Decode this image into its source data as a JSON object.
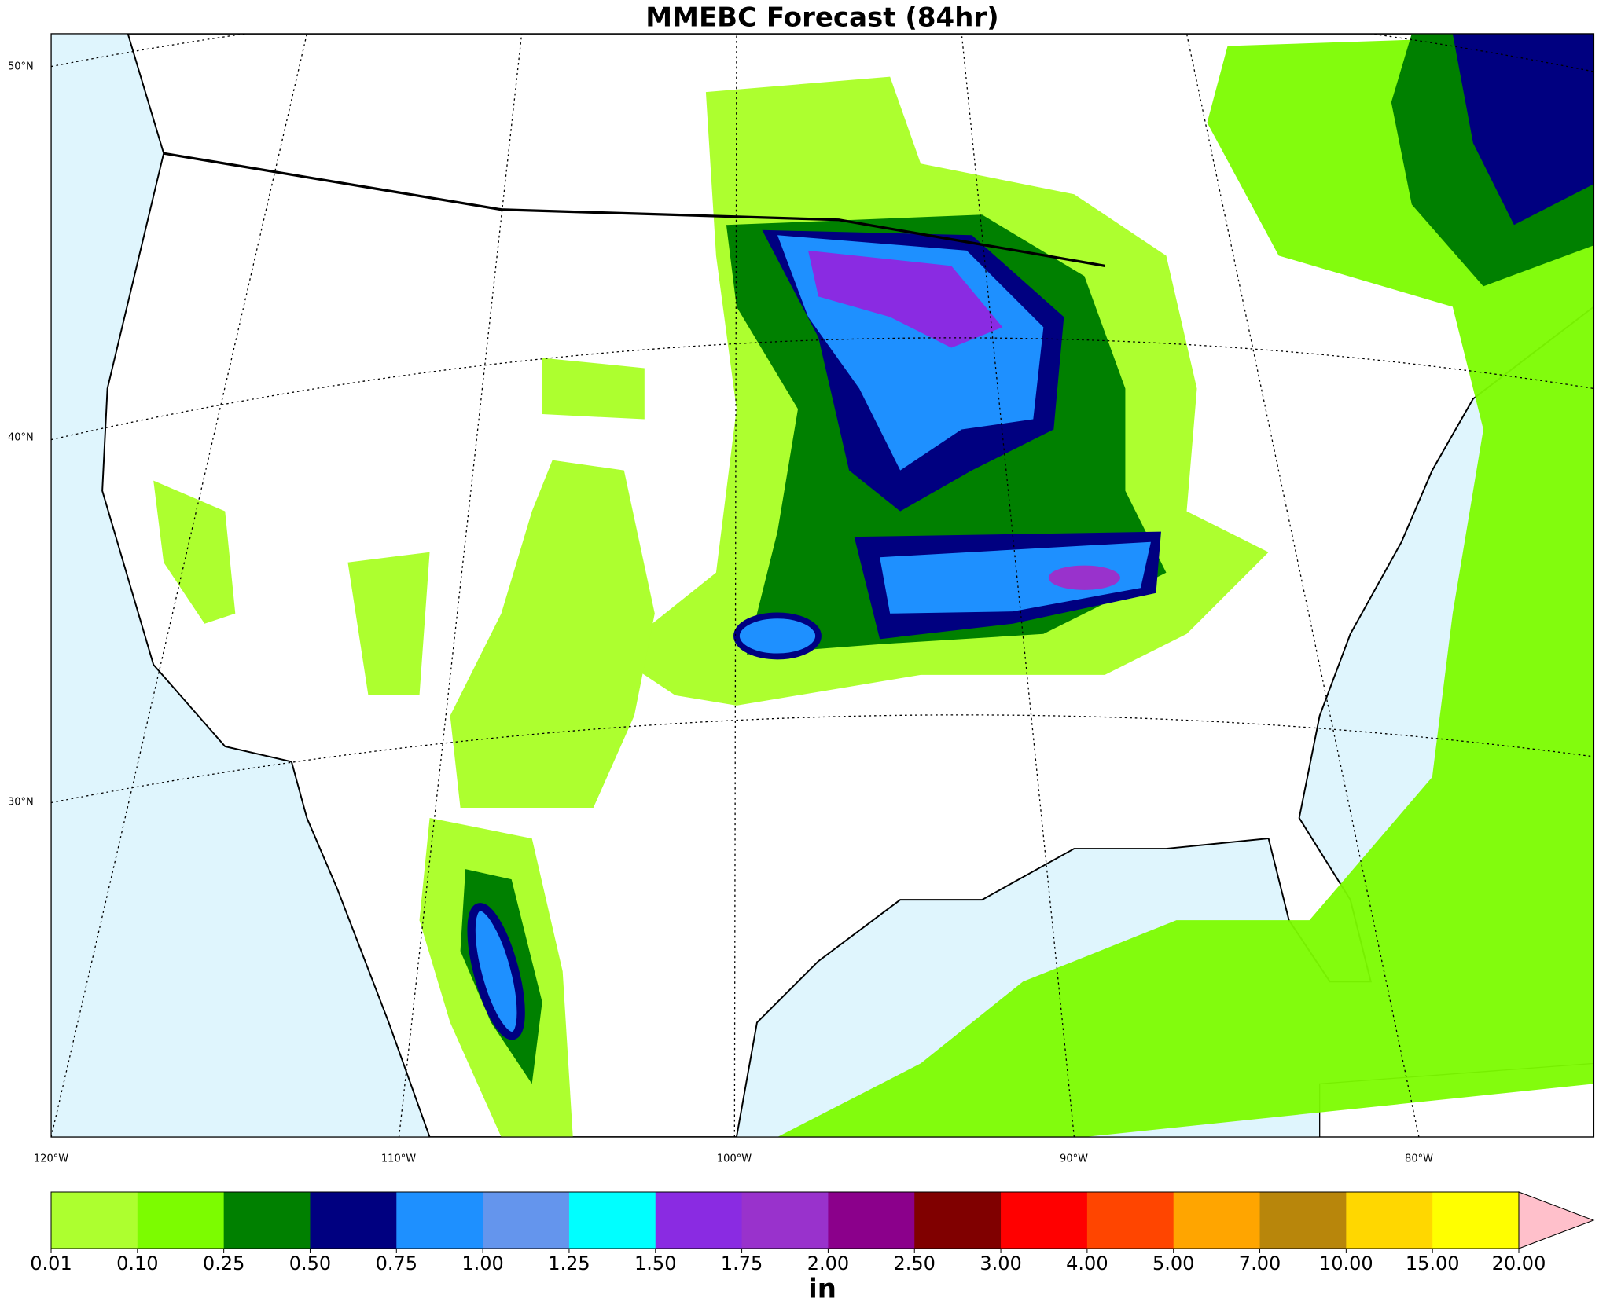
{
  "title": "MMEBC Forecast (84hr)",
  "map": {
    "lat_labels": [
      "50°N",
      "40°N",
      "30°N"
    ],
    "lon_labels": [
      "120°W",
      "110°W",
      "100°W",
      "90°W",
      "80°W"
    ]
  },
  "colorbar": {
    "ticks": [
      {
        "value": 0.01,
        "label": "0.01"
      },
      {
        "value": 0.1,
        "label": "0.10"
      },
      {
        "value": 0.25,
        "label": "0.25"
      },
      {
        "value": 0.5,
        "label": "0.50"
      },
      {
        "value": 0.75,
        "label": "0.75"
      },
      {
        "value": 1,
        "label": "1.00"
      },
      {
        "value": 1.25,
        "label": "1.25"
      },
      {
        "value": 1.5,
        "label": "1.50"
      },
      {
        "value": 1.75,
        "label": "1.75"
      },
      {
        "value": 2,
        "label": "2.00"
      },
      {
        "value": 2.5,
        "label": "2.50"
      },
      {
        "value": 3,
        "label": "3.00"
      },
      {
        "value": 4,
        "label": "4.00"
      },
      {
        "value": 5,
        "label": "5.00"
      },
      {
        "value": 7,
        "label": "7.00"
      },
      {
        "value": 10,
        "label": "10.00"
      },
      {
        "value": 15,
        "label": "15.00"
      },
      {
        "value": 20,
        "label": "20.00"
      }
    ],
    "colors": [
      "#adff2f",
      "#7cfc00",
      "#008000",
      "#000080",
      "#1e90ff",
      "#6495ed",
      "#00ffff",
      "#8a2be2",
      "#9932cc",
      "#8b008b",
      "#800000",
      "#ff0000",
      "#ff4500",
      "#ffa500",
      "#b8860b",
      "#ffd700",
      "#ffff00"
    ],
    "extend_color": "#ffc0cb",
    "unit": "in"
  }
}
